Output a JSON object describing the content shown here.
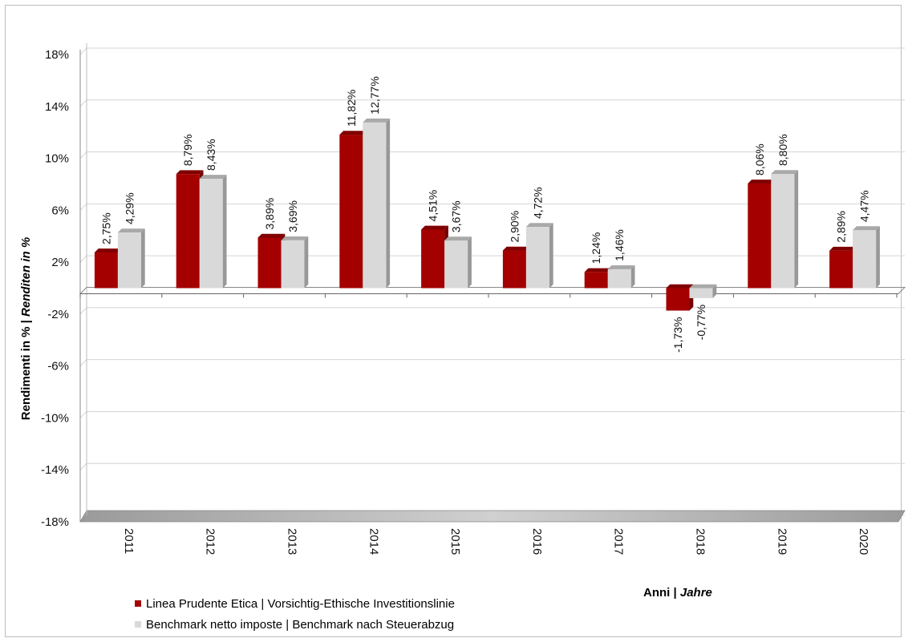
{
  "chart_data": {
    "type": "bar",
    "categories": [
      "2011",
      "2012",
      "2013",
      "2014",
      "2015",
      "2016",
      "2017",
      "2018",
      "2019",
      "2020"
    ],
    "series": [
      {
        "name": "Linea Prudente Etica | Vorsichtig-Ethische Investitionslinie",
        "values": [
          2.75,
          8.79,
          3.89,
          11.82,
          4.51,
          2.9,
          1.24,
          -1.73,
          8.06,
          2.89
        ],
        "labels": [
          "2,75%",
          "8,79%",
          "3,89%",
          "11,82%",
          "4,51%",
          "2,90%",
          "1,24%",
          "-1,73%",
          "8,06%",
          "2,89%"
        ],
        "color": "#a40000"
      },
      {
        "name": "Benchmark netto imposte | Benchmark nach Steuerabzug",
        "values": [
          4.29,
          8.43,
          3.69,
          12.77,
          3.67,
          4.72,
          1.46,
          -0.77,
          8.8,
          4.47
        ],
        "labels": [
          "4,29%",
          "8,43%",
          "3,69%",
          "12,77%",
          "3,67%",
          "4,72%",
          "1,46%",
          "-0,77%",
          "8,80%",
          "4,47%"
        ],
        "color": "#d9d9d9"
      }
    ],
    "yticks": [
      {
        "value": 18,
        "label": "18%"
      },
      {
        "value": 14,
        "label": "14%"
      },
      {
        "value": 10,
        "label": "10%"
      },
      {
        "value": 6,
        "label": "6%"
      },
      {
        "value": 2,
        "label": "2%"
      },
      {
        "value": -2,
        "label": "-2%"
      },
      {
        "value": -6,
        "label": "-6%"
      },
      {
        "value": -10,
        "label": "-10%"
      },
      {
        "value": -14,
        "label": "-14%"
      },
      {
        "value": -18,
        "label": "-18%"
      }
    ],
    "ylim": [
      -18,
      18
    ],
    "ylabel": {
      "plain": "Rendimenti in % | ",
      "italic": "Renditen in %"
    },
    "xlabel": {
      "plain": "Anni | ",
      "italic": "Jahre"
    },
    "grid": true,
    "legend_position": "bottom-left"
  }
}
